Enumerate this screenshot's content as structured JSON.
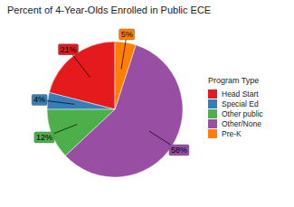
{
  "chart_data": {
    "type": "pie",
    "title": "Percent of 4-Year-Olds Enrolled in Public ECE",
    "categories": [
      "Head Start",
      "Special Ed",
      "Other public",
      "Other/None",
      "Pre-K"
    ],
    "values": [
      21,
      4,
      12,
      58,
      5
    ],
    "value_labels": [
      "21%",
      "4%",
      "12%",
      "58%",
      "5%"
    ],
    "colors": [
      "#e41a1c",
      "#377eb8",
      "#4daf4a",
      "#984ea3",
      "#ff7f00"
    ],
    "legend_title": "Program Type",
    "legend": "right",
    "data_labels": true
  }
}
